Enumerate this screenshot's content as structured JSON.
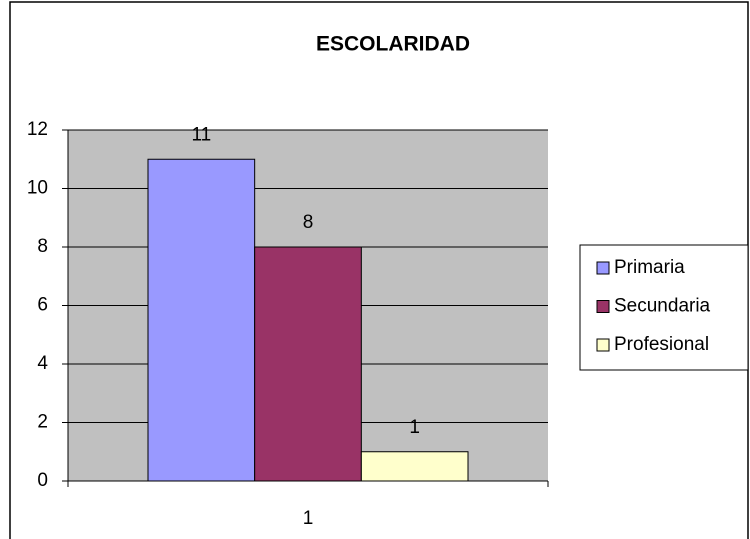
{
  "chart_data": {
    "type": "bar",
    "title": "ESCOLARIDAD",
    "categories": [
      "1"
    ],
    "series": [
      {
        "name": "Primaria",
        "color": "#9999ff",
        "values": [
          11
        ]
      },
      {
        "name": "Secundaria",
        "color": "#993366",
        "values": [
          8
        ]
      },
      {
        "name": "Profesional",
        "color": "#ffffcc",
        "values": [
          1
        ]
      }
    ],
    "ylim": [
      0,
      12
    ],
    "yticks": [
      0,
      2,
      4,
      6,
      8,
      10,
      12
    ],
    "grid": true,
    "legend": "right"
  }
}
